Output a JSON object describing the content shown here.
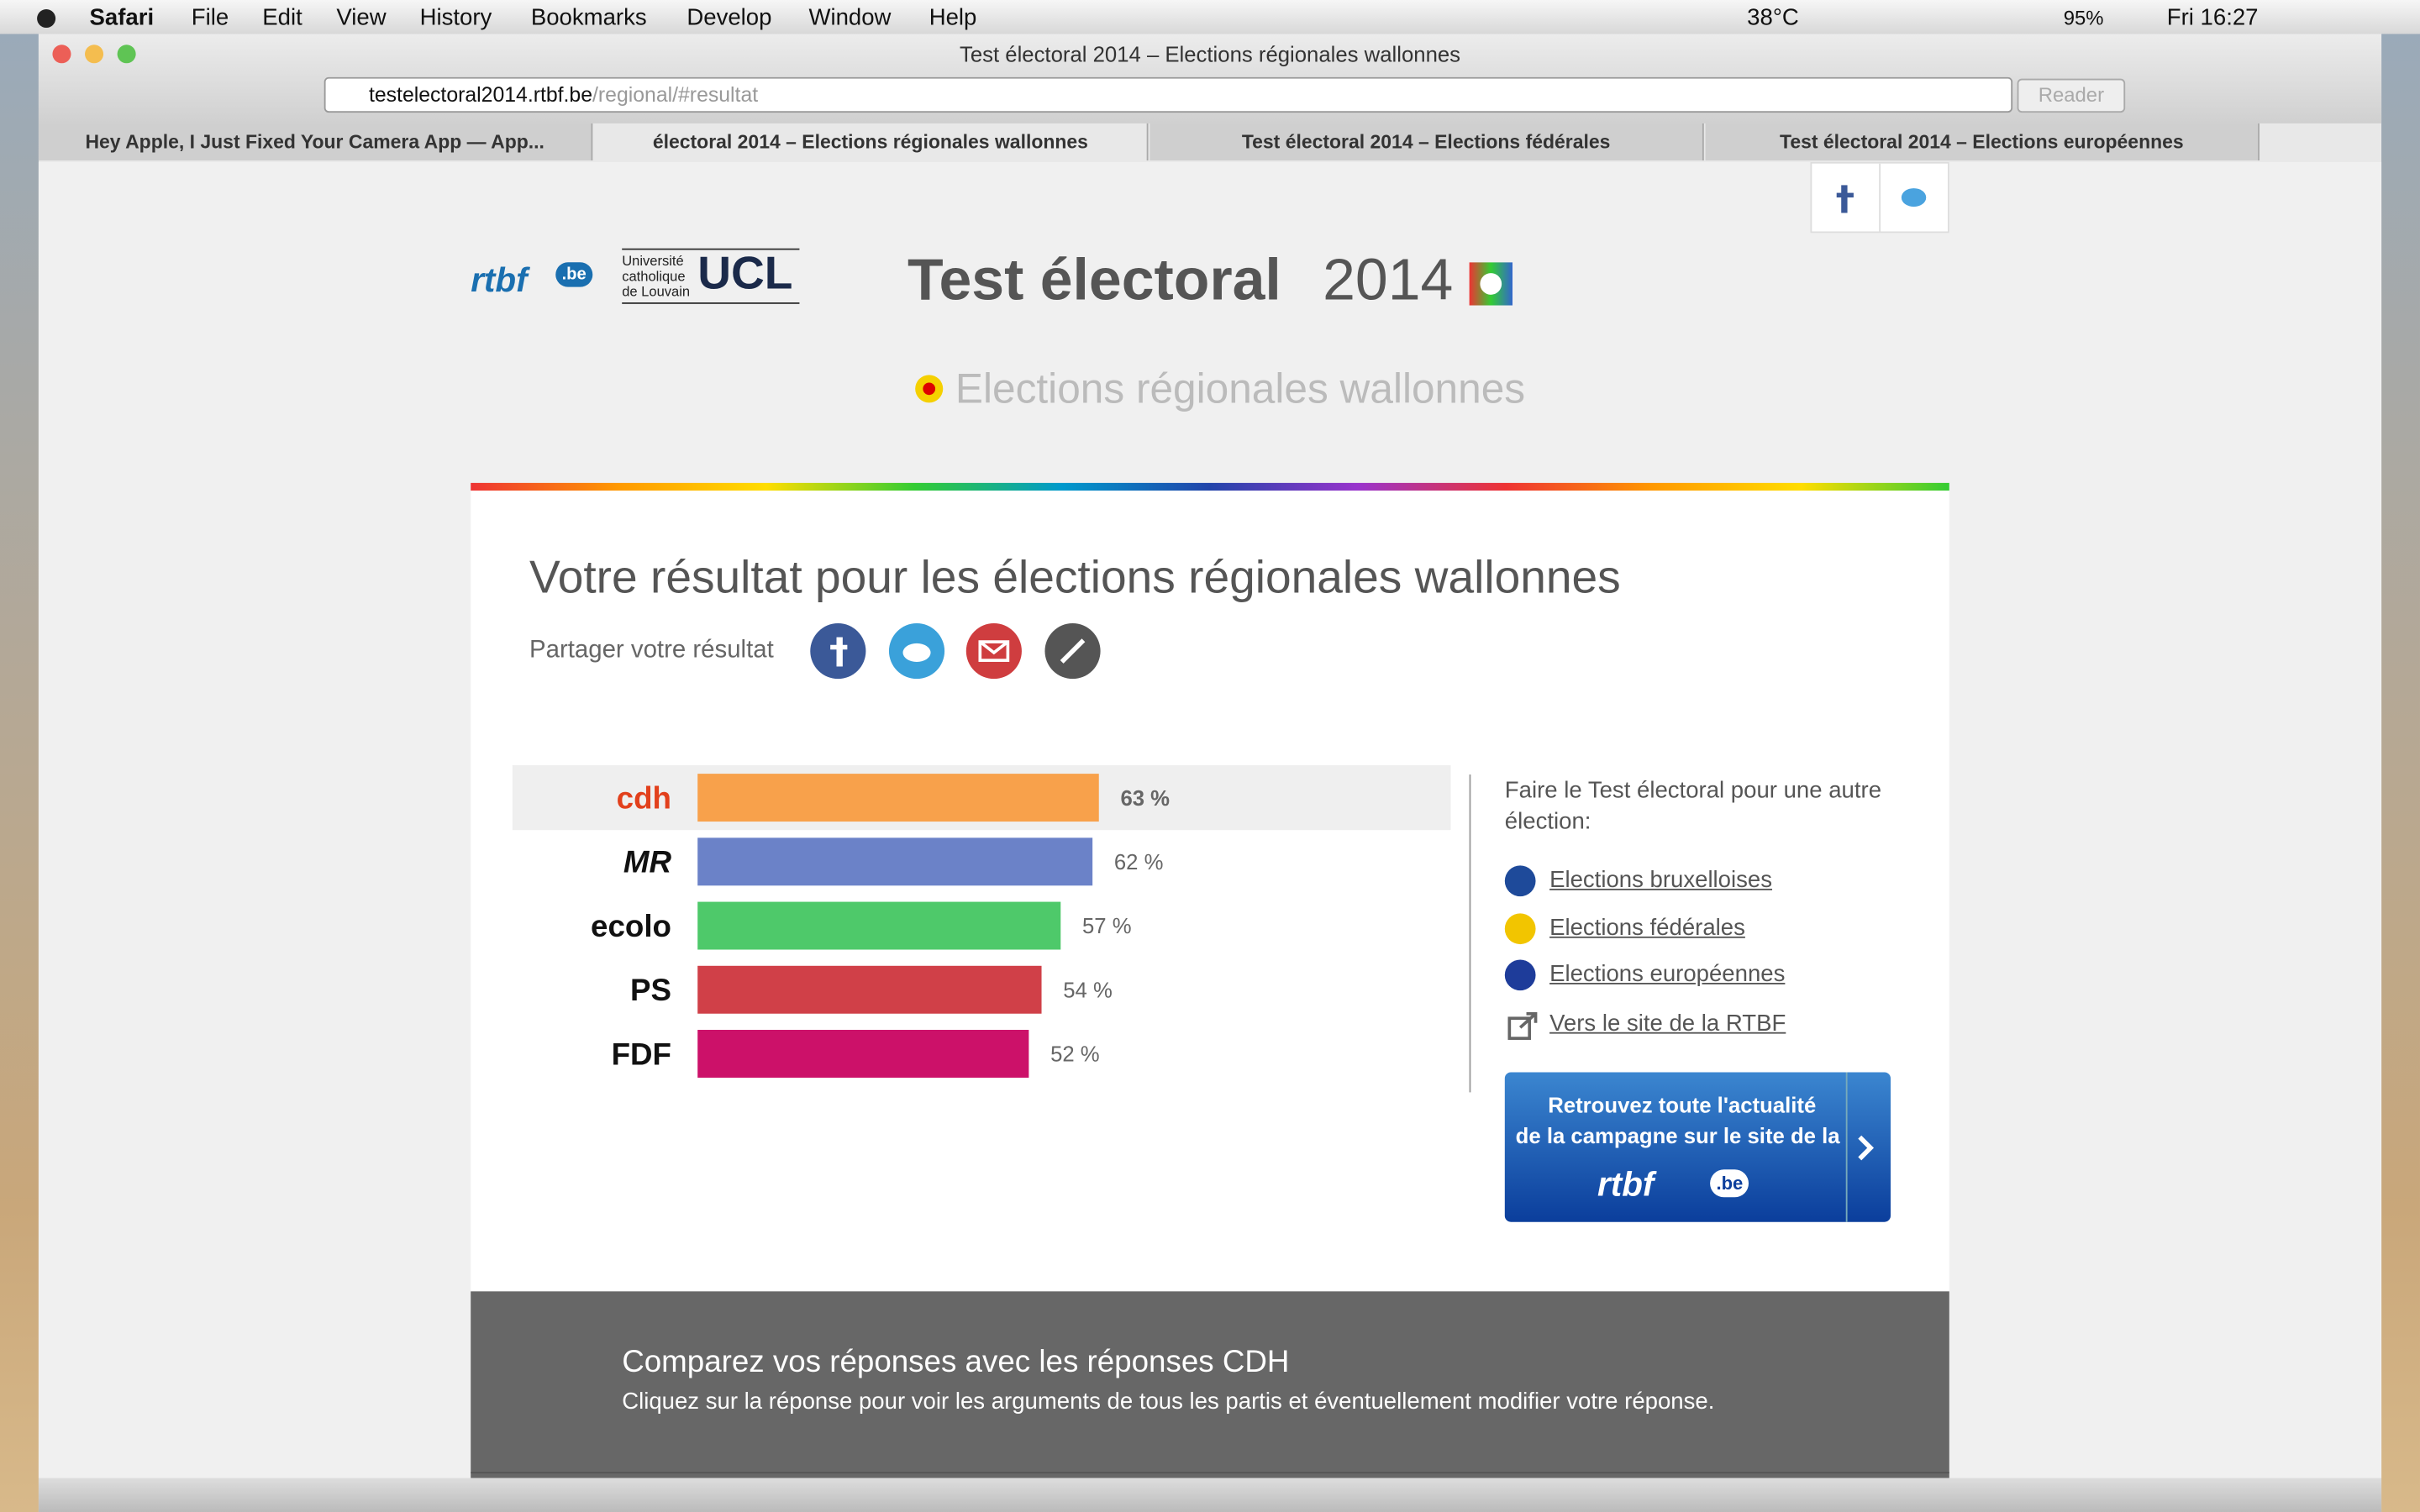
{
  "menubar": {
    "app": "Safari",
    "menus": [
      "File",
      "Edit",
      "View",
      "History",
      "Bookmarks",
      "Develop",
      "Window",
      "Help"
    ],
    "temperature": "38°C",
    "battery": "95%",
    "clock": "Fri 16:27"
  },
  "browser": {
    "window_title": "Test électoral 2014 – Elections régionales wallonnes",
    "url_host": "testelectoral2014.rtbf.be",
    "url_path": "/regional/#resultat",
    "reader": "Reader",
    "tabs": [
      "Hey Apple, I Just Fixed Your Camera App — App...",
      "électoral 2014 – Elections régionales wallonnes",
      "Test électoral 2014 – Elections fédérales",
      "Test électoral 2014 – Elections européennes"
    ]
  },
  "header": {
    "rtbf": "rtbf",
    "rtbf_suffix": ".be",
    "ucl_name": [
      "Université",
      "catholique",
      "de Louvain"
    ],
    "ucl": "UCL",
    "title": "Test électoral",
    "year": "2014",
    "subtitle": "Elections régionales wallonnes"
  },
  "result": {
    "heading": "Votre résultat pour les élections régionales wallonnes",
    "share_label": "Partager votre résultat"
  },
  "chart_data": {
    "type": "bar",
    "orientation": "horizontal",
    "categories": [
      "cdh",
      "MR",
      "ecolo",
      "PS",
      "FDF"
    ],
    "values": [
      63,
      62,
      57,
      54,
      52
    ],
    "value_labels": [
      "63 %",
      "62 %",
      "57 %",
      "54 %",
      "52 %"
    ],
    "colors": [
      "#f8a14b",
      "#6b82c8",
      "#4ec96a",
      "#d04048",
      "#cc1169"
    ]
  },
  "sidebar": {
    "intro": "Faire le Test électoral pour une autre élection:",
    "links": [
      "Elections bruxelloises",
      "Elections fédérales",
      "Elections européennes"
    ],
    "rtbf_link": "Vers le site de la RTBF",
    "banner": {
      "line1": "Retrouvez toute l'actualité",
      "line2": "de la campagne sur le site de la",
      "brand": "rtbf",
      "suffix": ".be"
    }
  },
  "compare": {
    "title": "Comparez vos réponses avec les réponses CDH",
    "text": "Cliquez sur la réponse pour voir les arguments de tous les partis et éventuellement modifier votre réponse."
  }
}
